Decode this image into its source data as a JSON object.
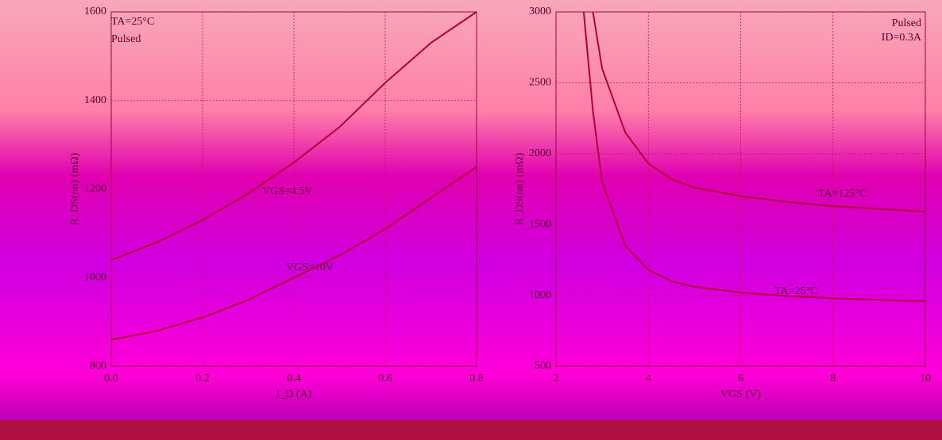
{
  "chart_data": [
    {
      "type": "line",
      "x_label": "I_D (A)",
      "y_label": "R_DS(on) (mΩ)",
      "annotations": [
        "TA=25°C",
        "Pulsed",
        "VGS=4.5V",
        "VGS=10V"
      ],
      "xlim": [
        0,
        0.8
      ],
      "xticks": [
        {
          "value": 0,
          "label": "0.0"
        },
        0.2,
        0.4,
        0.6,
        0.8
      ],
      "ylim": [
        800,
        1600
      ],
      "yticks": [
        800,
        1000,
        1200,
        1400,
        1600
      ],
      "grid": true,
      "x": [
        0,
        0.1,
        0.2,
        0.3,
        0.4,
        0.5,
        0.6,
        0.7,
        0.8
      ],
      "series": [
        {
          "color": "#b0003a",
          "values": [
            1040,
            1080,
            1130,
            1190,
            1260,
            1340,
            1440,
            1530,
            1600
          ]
        },
        {
          "color": "#b0003a",
          "values": [
            860,
            880,
            910,
            950,
            1000,
            1050,
            1110,
            1180,
            1250
          ]
        }
      ]
    },
    {
      "type": "line",
      "x_label": "VGS (V)",
      "y_label": "R_DS(on) (mΩ)",
      "annotations": [
        "Pulsed",
        "ID=0.3A",
        "TA=125°C",
        "TA=25°C"
      ],
      "xlim": [
        2,
        10
      ],
      "xticks": [
        2,
        4,
        6,
        8,
        10
      ],
      "ylim": [
        500,
        3000
      ],
      "yticks": [
        500,
        1000,
        1500,
        2000,
        2500,
        3000
      ],
      "grid": true,
      "x": [
        2.6,
        2.8,
        3,
        3.5,
        4,
        4.5,
        5,
        6,
        7,
        8,
        9,
        10
      ],
      "series": [
        {
          "color": "#b0003a",
          "values": [
            null,
            3000,
            2600,
            2150,
            1930,
            1820,
            1760,
            1700,
            1660,
            1630,
            1610,
            1590
          ]
        },
        {
          "color": "#b0003a",
          "values": [
            3000,
            2300,
            1800,
            1350,
            1180,
            1100,
            1060,
            1020,
            995,
            980,
            968,
            960
          ]
        }
      ]
    }
  ]
}
